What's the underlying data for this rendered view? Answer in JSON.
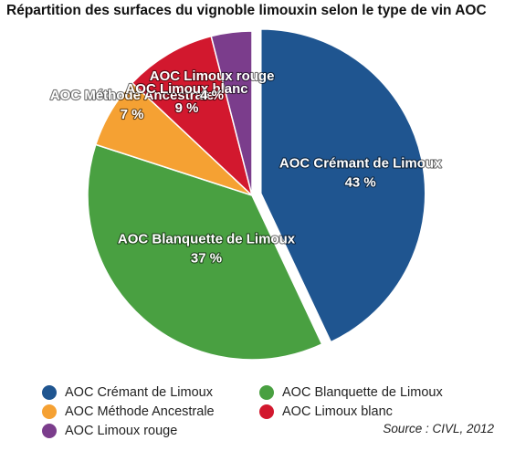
{
  "chart_data": {
    "type": "pie",
    "title": "Répartition des surfaces du vignoble limouxin selon le type de vin AOC",
    "source": "Source : CIVL, 2012",
    "slices": [
      {
        "label": "AOC Crémant de Limoux",
        "value": 43,
        "value_label": "43 %",
        "color": "#1f5590",
        "exploded": true
      },
      {
        "label": "AOC Blanquette de Limoux",
        "value": 37,
        "value_label": "37 %",
        "color": "#49a041",
        "exploded": false
      },
      {
        "label": "AOC Méthode Ancestrale",
        "value": 7,
        "value_label": "7 %",
        "color": "#f5a133",
        "exploded": false
      },
      {
        "label": "AOC Limoux blanc",
        "value": 9,
        "value_label": "9 %",
        "color": "#d2182e",
        "exploded": false
      },
      {
        "label": "AOC Limoux rouge",
        "value": 4,
        "value_label": "4 %",
        "color": "#7b3d8c",
        "exploded": false
      }
    ],
    "legend": [
      {
        "label": "AOC Crémant de Limoux",
        "color": "#1f5590"
      },
      {
        "label": "AOC Blanquette de Limoux",
        "color": "#49a041"
      },
      {
        "label": "AOC Méthode Ancestrale",
        "color": "#f5a133"
      },
      {
        "label": "AOC Limoux blanc",
        "color": "#d2182e"
      },
      {
        "label": "AOC Limoux rouge",
        "color": "#7b3d8c"
      }
    ],
    "legend_placement": "bottom"
  }
}
